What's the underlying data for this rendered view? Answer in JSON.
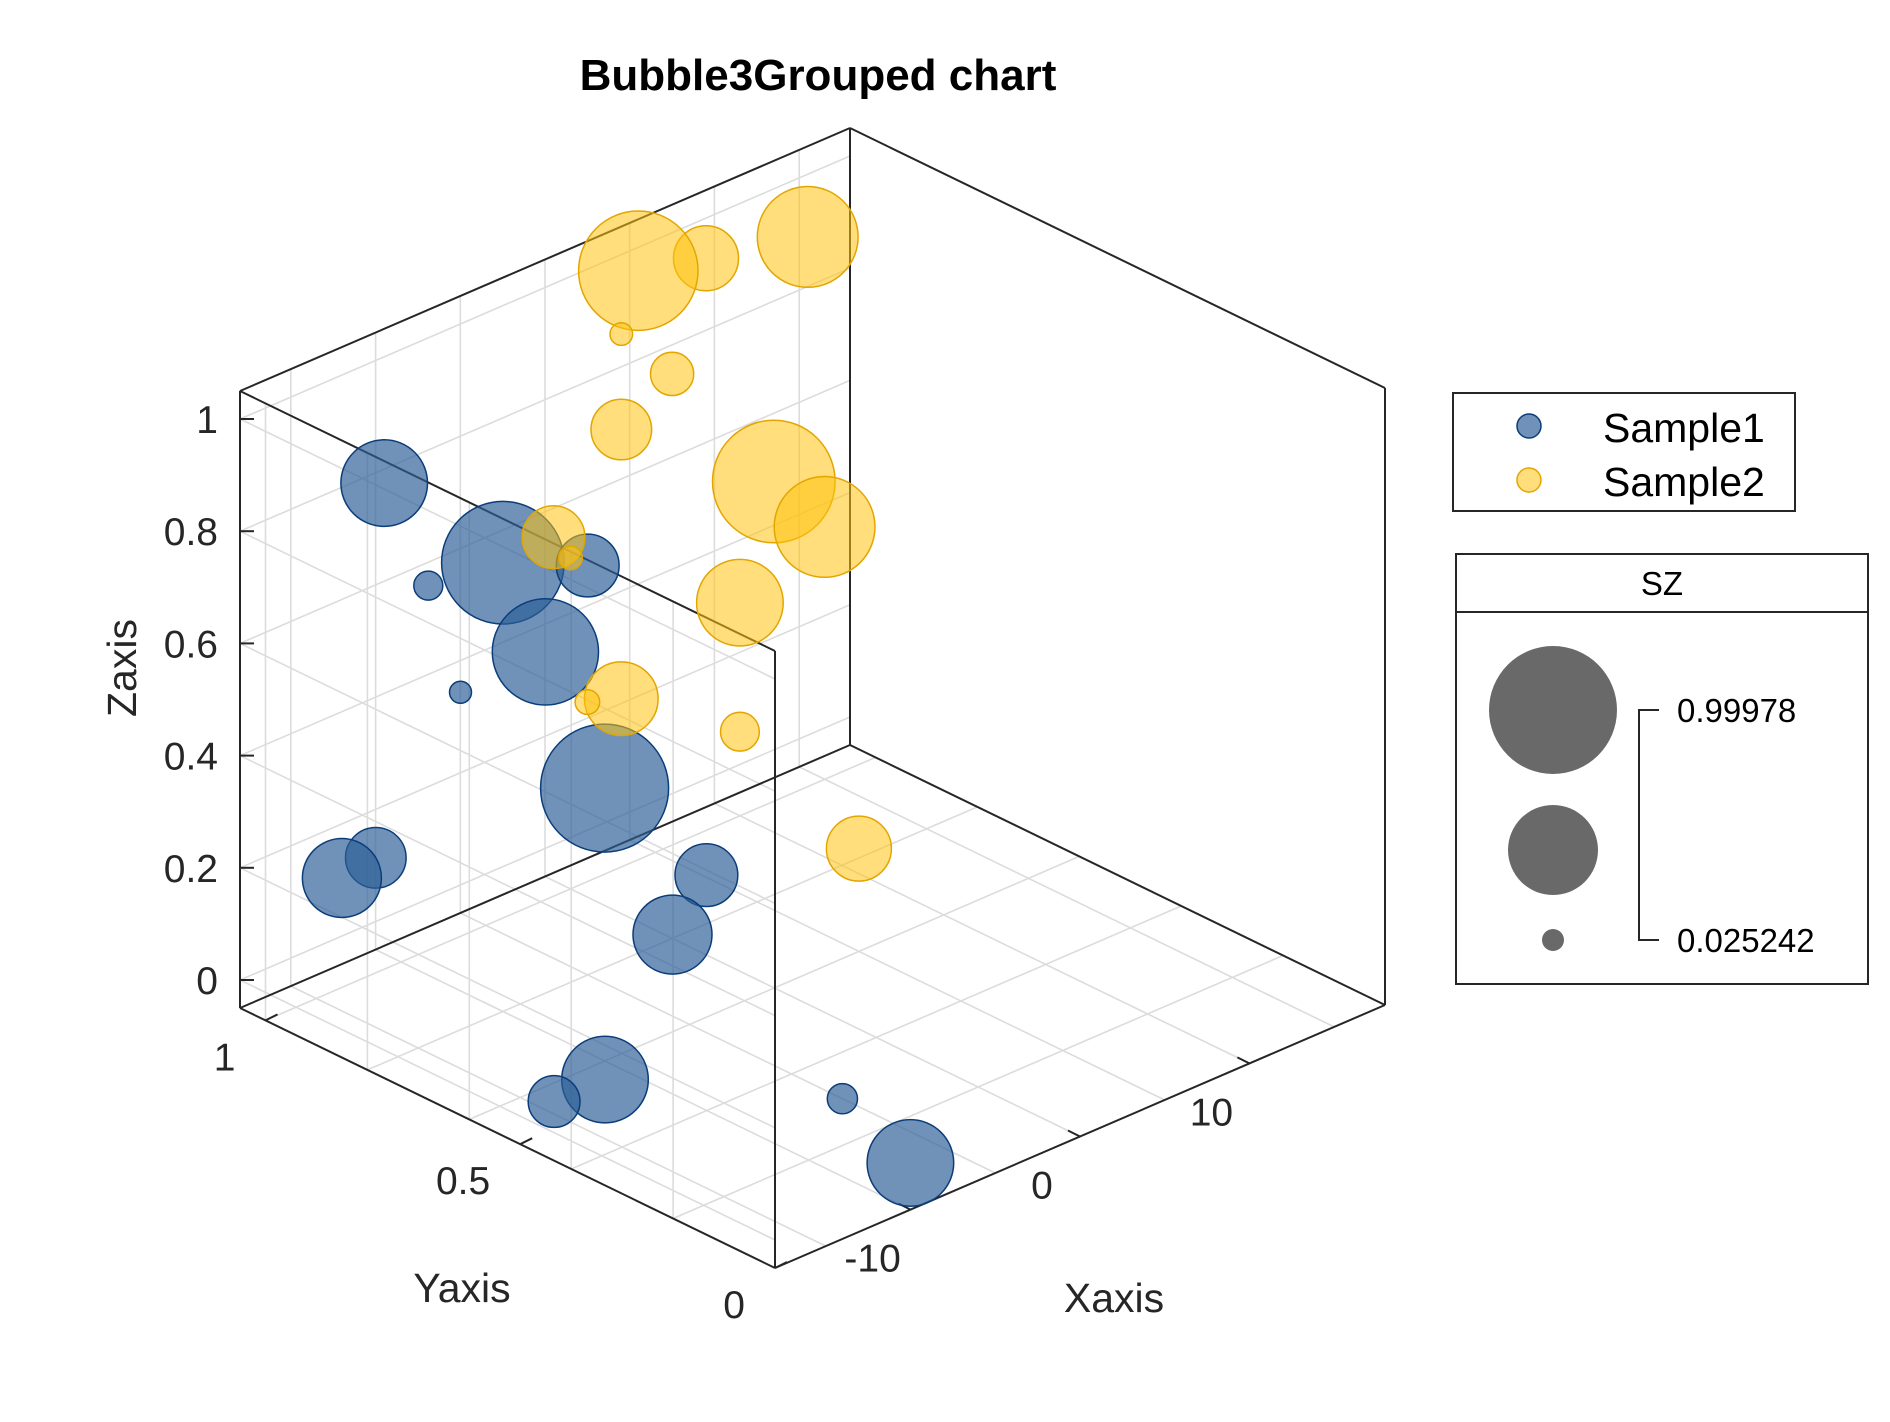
{
  "chart_data": {
    "type": "scatter",
    "subtype": "bubble3-grouped",
    "title": "Bubble3Grouped chart",
    "xlabel": "Xaxis",
    "ylabel": "Yaxis",
    "zlabel": "Zaxis",
    "xlim": [
      -18,
      18
    ],
    "ylim": [
      0,
      1.05
    ],
    "zlim": [
      -0.05,
      1.05
    ],
    "x_ticks": [
      "-10",
      "0",
      "10"
    ],
    "y_ticks": [
      "0",
      "0.5",
      "1"
    ],
    "z_ticks": [
      "0",
      "0.2",
      "0.4",
      "0.6",
      "0.8",
      "1"
    ],
    "grid": true,
    "legend": {
      "placement": "right",
      "entries": [
        "Sample1",
        "Sample2"
      ]
    },
    "size_legend": {
      "title": "SZ",
      "max_label": "0.99978",
      "min_label": "0.025242"
    },
    "series": [
      {
        "name": "Sample1",
        "color": "#2c5f96",
        "edge_color": "#0b3d7a",
        "points": [
          {
            "x": -14,
            "y": 0.9,
            "z": 0.9,
            "s": 0.62
          },
          {
            "x": -12,
            "y": 0.88,
            "z": 0.7,
            "s": 0.09
          },
          {
            "x": -10,
            "y": 0.8,
            "z": 0.75,
            "s": 0.95
          },
          {
            "x": -9,
            "y": 0.75,
            "z": 0.6,
            "s": 0.8
          },
          {
            "x": -5,
            "y": 0.8,
            "z": 0.68,
            "s": 0.4
          },
          {
            "x": -11,
            "y": 0.85,
            "z": 0.51,
            "s": 0.025
          },
          {
            "x": -18,
            "y": 0.85,
            "z": 0.27,
            "s": 0.55
          },
          {
            "x": -16,
            "y": 0.85,
            "z": 0.28,
            "s": 0.38
          },
          {
            "x": -4,
            "y": 0.8,
            "z": 0.27,
            "s": 0.99978
          },
          {
            "x": -1,
            "y": 0.7,
            "z": 0.12,
            "s": 0.4
          },
          {
            "x": -3,
            "y": 0.7,
            "z": 0.04,
            "s": 0.55
          },
          {
            "x": -16,
            "y": 0.5,
            "z": 0.0,
            "s": 0.3
          },
          {
            "x": -13,
            "y": 0.5,
            "z": 0.0,
            "s": 0.62
          },
          {
            "x": -5,
            "y": 0.3,
            "z": -0.05,
            "s": 0.1
          },
          {
            "x": -7,
            "y": 0.1,
            "z": -0.05,
            "s": 0.62
          }
        ]
      },
      {
        "name": "Sample2",
        "color": "#ffc20e",
        "edge_color": "#e3a600",
        "points": [
          {
            "x": 4,
            "y": 1.0,
            "z": 1.0,
            "s": 0.92
          },
          {
            "x": 8,
            "y": 1.0,
            "z": 0.97,
            "s": 0.42
          },
          {
            "x": 14,
            "y": 1.0,
            "z": 0.93,
            "s": 0.75
          },
          {
            "x": 3,
            "y": 1.0,
            "z": 0.9,
            "s": 0.03
          },
          {
            "x": 6,
            "y": 1.0,
            "z": 0.79,
            "s": 0.22
          },
          {
            "x": 3,
            "y": 1.0,
            "z": 0.73,
            "s": 0.38
          },
          {
            "x": -1,
            "y": 1.0,
            "z": 0.59,
            "s": 0.4
          },
          {
            "x": 0,
            "y": 1.0,
            "z": 0.54,
            "s": 0.04
          },
          {
            "x": 12,
            "y": 1.0,
            "z": 0.52,
            "s": 0.95
          },
          {
            "x": 15,
            "y": 1.0,
            "z": 0.4,
            "s": 0.75
          },
          {
            "x": 10,
            "y": 1.0,
            "z": 0.33,
            "s": 0.62
          },
          {
            "x": 3,
            "y": 1.0,
            "z": 0.25,
            "s": 0.5
          },
          {
            "x": 1,
            "y": 1.0,
            "z": 0.27,
            "s": 0.05
          },
          {
            "x": 10,
            "y": 1.0,
            "z": 0.1,
            "s": 0.18
          },
          {
            "x": 8,
            "y": 0.7,
            "z": 0.05,
            "s": 0.42
          }
        ]
      }
    ]
  }
}
